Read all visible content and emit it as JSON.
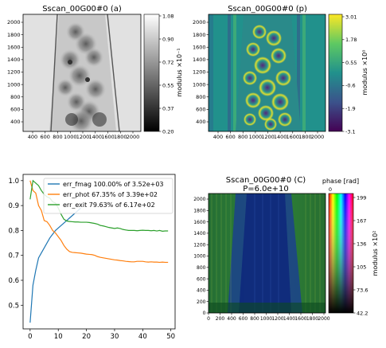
{
  "panels": {
    "amplitude": {
      "title": "Sscan_00G00#0 (a)",
      "x_ticks": [
        "400",
        "600",
        "800",
        "1000",
        "1200",
        "1400",
        "1600",
        "1800",
        "2000"
      ],
      "y_ticks": [
        "400",
        "600",
        "800",
        "1000",
        "1200",
        "1400",
        "1600",
        "1800",
        "2000"
      ],
      "colorbar_ticks": [
        "1.08",
        "0.90",
        "0.72",
        "0.55",
        "0.37",
        "0.20"
      ],
      "colorbar_label": "modulus ×10⁻¹",
      "colormap": "gray"
    },
    "phase": {
      "title": "Sscan_00G00#0 (p)",
      "x_ticks": [
        "400",
        "600",
        "800",
        "1000",
        "1200",
        "1400",
        "1600",
        "1800",
        "2000"
      ],
      "y_ticks": [
        "400",
        "600",
        "800",
        "1000",
        "1200",
        "1400",
        "1600",
        "1800",
        "2000"
      ],
      "colorbar_ticks": [
        "3.01",
        "1.78",
        "0.55",
        "-0.6",
        "-1.9",
        "-3.1"
      ],
      "colorbar_label": "modulus ×10⁰",
      "colormap": "viridis"
    },
    "complex": {
      "title": "Sscan_00G00#0 (C)",
      "subtitle": "P=6.0e+10",
      "x_ticks": [
        "0",
        "200",
        "400",
        "600",
        "800",
        "1000",
        "1200",
        "1400",
        "1600",
        "1800",
        "2000"
      ],
      "y_ticks": [
        "0",
        "200",
        "400",
        "600",
        "800",
        "1000",
        "1200",
        "1400",
        "1600",
        "1800",
        "2000"
      ],
      "colorbar_ticks": [
        "199",
        "167",
        "136",
        "105",
        "73.6",
        "42.2"
      ],
      "colorbar_label": "modulus ×10²",
      "colorbar_top_label": "phase [rad]",
      "colorbar_top_tick": "0"
    }
  },
  "chart_data": {
    "type": "line",
    "title": "",
    "xlabel": "",
    "ylabel": "",
    "xlim": [
      -2.5,
      51.5
    ],
    "ylim": [
      0.405,
      1.025
    ],
    "x_ticks": [
      "0",
      "10",
      "20",
      "30",
      "40",
      "50"
    ],
    "y_ticks": [
      "0.5",
      "0.6",
      "0.7",
      "0.8",
      "0.9",
      "1.0"
    ],
    "legend_position": "top-right",
    "series": [
      {
        "name": "err_fmag 100.00% of 3.52e+03",
        "color": "#1f77b4",
        "x": [
          0,
          1,
          2,
          3,
          4,
          5,
          6,
          7,
          8,
          9,
          10,
          11,
          12,
          13,
          14,
          15,
          16,
          17,
          18
        ],
        "y": [
          0.43,
          0.58,
          0.64,
          0.69,
          0.71,
          0.73,
          0.75,
          0.77,
          0.785,
          0.8,
          0.81,
          0.82,
          0.83,
          0.84,
          0.85,
          0.86,
          0.87,
          0.88,
          0.89
        ]
      },
      {
        "name": "err_phot 67.35% of 3.39e+02",
        "color": "#ff7f0e",
        "x": [
          0,
          1,
          2,
          3,
          4,
          5,
          6,
          7,
          8,
          9,
          10,
          11,
          12,
          13,
          14,
          15,
          16,
          17,
          18,
          19,
          20,
          21,
          22,
          23,
          24,
          25,
          26,
          27,
          28,
          29,
          30,
          31,
          32,
          33,
          34,
          35,
          36,
          37,
          38,
          39,
          40,
          41,
          42,
          43,
          44,
          45,
          46,
          47,
          48,
          49
        ],
        "y": [
          1.0,
          0.96,
          0.95,
          0.9,
          0.88,
          0.84,
          0.835,
          0.82,
          0.8,
          0.79,
          0.775,
          0.76,
          0.74,
          0.725,
          0.715,
          0.712,
          0.711,
          0.71,
          0.709,
          0.707,
          0.705,
          0.704,
          0.703,
          0.7,
          0.695,
          0.692,
          0.69,
          0.688,
          0.686,
          0.684,
          0.682,
          0.681,
          0.679,
          0.678,
          0.676,
          0.675,
          0.674,
          0.674,
          0.676,
          0.676,
          0.676,
          0.674,
          0.673,
          0.674,
          0.673,
          0.673,
          0.672,
          0.673,
          0.672,
          0.672
        ]
      },
      {
        "name": "err_exit 79.63% of 6.17e+02",
        "color": "#2ca02c",
        "x": [
          0,
          1,
          2,
          3,
          4,
          5,
          6,
          7,
          8,
          9,
          10,
          11,
          12,
          13,
          14,
          15,
          16,
          17,
          18,
          19,
          20,
          21,
          22,
          23,
          24,
          25,
          26,
          27,
          28,
          29,
          30,
          31,
          32,
          33,
          34,
          35,
          36,
          37,
          38,
          39,
          40,
          41,
          42,
          43,
          44,
          45,
          46,
          47,
          48,
          49
        ],
        "y": [
          0.925,
          1.0,
          0.99,
          0.98,
          0.96,
          0.945,
          0.935,
          0.93,
          0.915,
          0.91,
          0.89,
          0.865,
          0.845,
          0.838,
          0.836,
          0.835,
          0.834,
          0.834,
          0.833,
          0.833,
          0.833,
          0.832,
          0.83,
          0.828,
          0.825,
          0.82,
          0.818,
          0.815,
          0.812,
          0.81,
          0.808,
          0.81,
          0.808,
          0.804,
          0.802,
          0.8,
          0.8,
          0.8,
          0.799,
          0.8,
          0.801,
          0.8,
          0.8,
          0.799,
          0.8,
          0.798,
          0.8,
          0.797,
          0.798,
          0.798
        ]
      }
    ]
  }
}
